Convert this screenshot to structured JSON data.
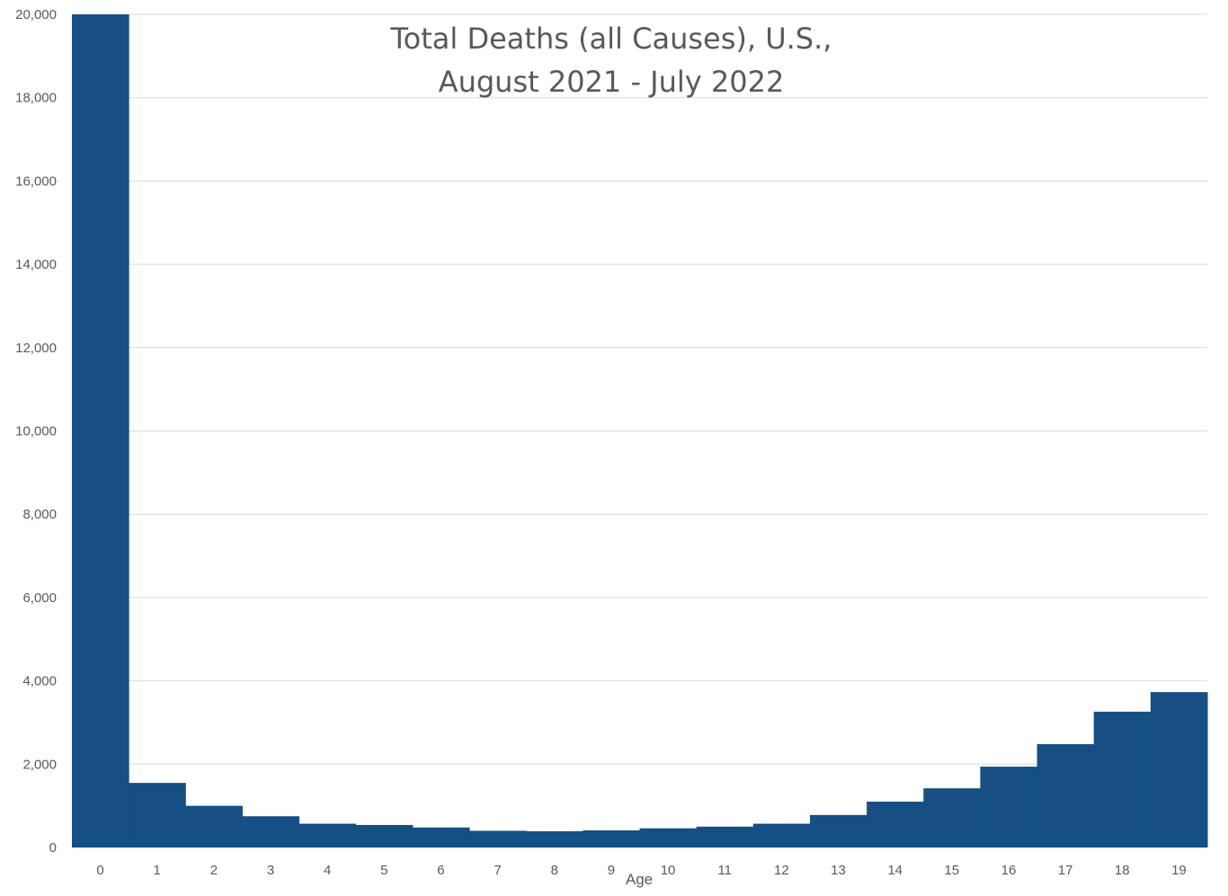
{
  "chart_data": {
    "type": "bar",
    "title_lines": [
      "Total Deaths (all Causes), U.S.,",
      "August 2021 - July 2022"
    ],
    "xlabel": "Age",
    "ylabel": "",
    "categories": [
      "0",
      "1",
      "2",
      "3",
      "4",
      "5",
      "6",
      "7",
      "8",
      "9",
      "10",
      "11",
      "12",
      "13",
      "14",
      "15",
      "16",
      "17",
      "18",
      "19"
    ],
    "values": [
      20000,
      1550,
      1000,
      750,
      570,
      540,
      480,
      400,
      390,
      410,
      460,
      500,
      570,
      780,
      1100,
      1420,
      1940,
      2480,
      3260,
      3730
    ],
    "y_ticks": [
      "0",
      "2,000",
      "4,000",
      "6,000",
      "8,000",
      "10,000",
      "12,000",
      "14,000",
      "16,000",
      "18,000",
      "20,000"
    ],
    "ylim": [
      0,
      20000
    ],
    "grid": true,
    "legend": "none",
    "bar_color": "#154f83"
  }
}
